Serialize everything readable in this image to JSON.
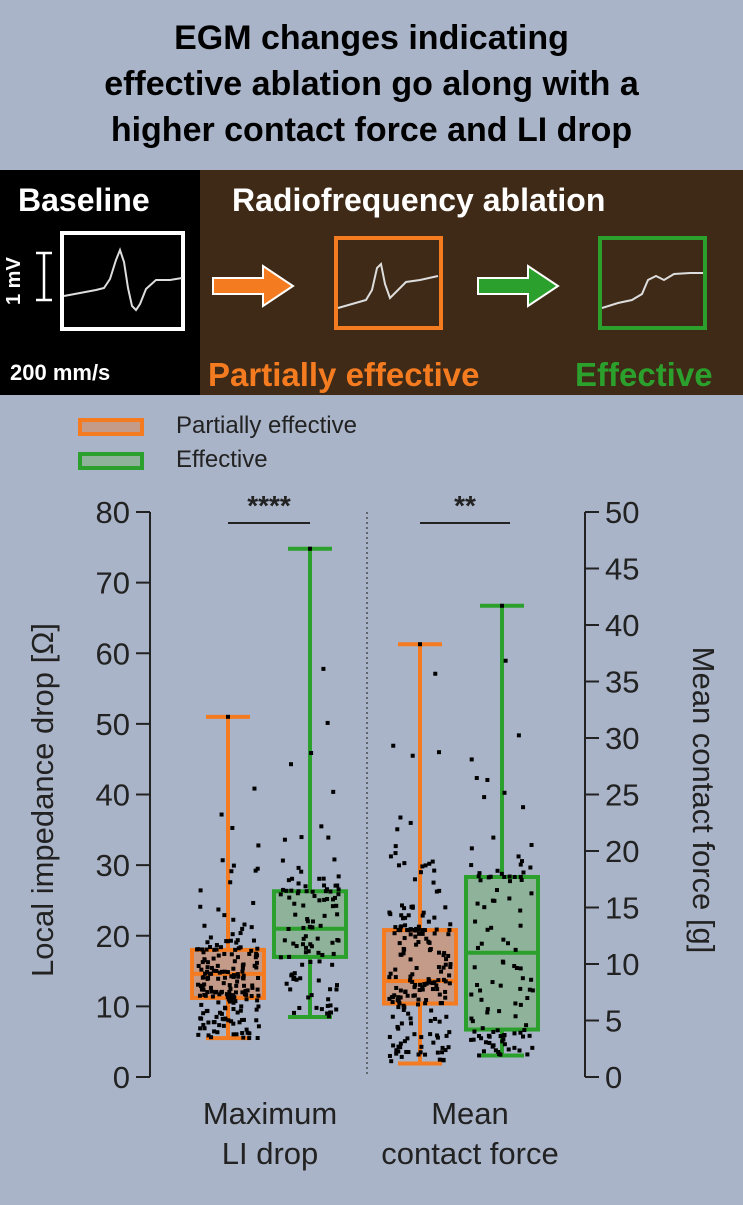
{
  "title": {
    "line1": "EGM changes indicating",
    "line2": "effective ablation go along with a",
    "line3": "higher contact force and LI drop"
  },
  "egm": {
    "baseline_label": "Baseline",
    "rf_label": "Radiofrequency ablation",
    "scale_label": "1 mV",
    "speed_label": "200 mm/s",
    "partial_label": "Partially effective",
    "effective_label": "Effective"
  },
  "colors": {
    "partial": "#f47b20",
    "effective": "#2ca02c",
    "partial_fill": "#c49a88",
    "effective_fill": "#8fb39a",
    "background": "#a9b4c8"
  },
  "chart_data": {
    "type": "box",
    "legend": [
      "Partially effective",
      "Effective"
    ],
    "legend_position": "top-left",
    "categories": [
      "Maximum\nLI drop",
      "Mean\ncontact force"
    ],
    "category_lines": [
      [
        "Maximum",
        "LI drop"
      ],
      [
        "Mean",
        "contact force"
      ]
    ],
    "y_left": {
      "label": "Local impedance drop [Ω]",
      "range": [
        0,
        80
      ],
      "ticks": [
        0,
        10,
        20,
        30,
        40,
        50,
        60,
        70,
        80
      ]
    },
    "y_right": {
      "label": "Mean contact force [g]",
      "range": [
        0,
        50
      ],
      "ticks": [
        0,
        5,
        10,
        15,
        20,
        25,
        30,
        35,
        40,
        45,
        50
      ]
    },
    "significance": [
      "****",
      "**"
    ],
    "series": [
      {
        "name": "Partially effective",
        "boxes": [
          {
            "category": "Maximum\nLI drop",
            "axis": "left",
            "min": 5.5,
            "q1": 11.2,
            "median": 14.6,
            "q3": 18.0,
            "max": 51.0
          },
          {
            "category": "Mean\ncontact force",
            "axis": "right",
            "min": 1.2,
            "q1": 6.5,
            "median": 8.5,
            "q3": 13.0,
            "max": 38.3
          }
        ]
      },
      {
        "name": "Effective",
        "boxes": [
          {
            "category": "Maximum\nLI drop",
            "axis": "left",
            "min": 8.5,
            "q1": 17.0,
            "median": 21.0,
            "q3": 26.3,
            "max": 74.8
          },
          {
            "category": "Mean\ncontact force",
            "axis": "right",
            "min": 1.9,
            "q1": 4.2,
            "median": 11.0,
            "q3": 17.7,
            "max": 41.7
          }
        ]
      }
    ]
  }
}
